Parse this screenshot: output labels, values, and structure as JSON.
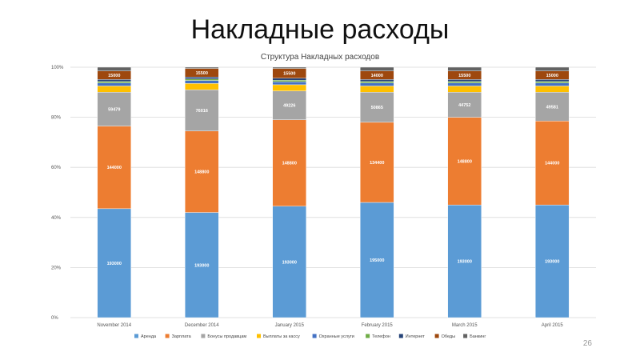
{
  "slide": {
    "title": "Накладные расходы",
    "page_number": "26"
  },
  "chart_data": {
    "type": "bar",
    "stacked": "percent",
    "title": "Структура Накладных расходов",
    "categories": [
      "November 2014",
      "December 2014",
      "January 2015",
      "February 2015",
      "March 2015",
      "April 2015"
    ],
    "y_ticks": [
      "0%",
      "20%",
      "40%",
      "60%",
      "80%",
      "100%"
    ],
    "ylim": [
      0,
      100
    ],
    "grid": true,
    "legend_position": "bottom",
    "series": [
      {
        "name": "Аренда",
        "color": "#5b9bd5",
        "percent": [
          43.5,
          42.0,
          44.5,
          46.0,
          45.0,
          45.0
        ],
        "labels": [
          "193000",
          "193000",
          "193000",
          "195000",
          "193000",
          "193000"
        ]
      },
      {
        "name": "Зарплата",
        "color": "#ed7d31",
        "percent": [
          33.0,
          32.5,
          34.5,
          32.0,
          35.0,
          33.5
        ],
        "labels": [
          "144000",
          "148800",
          "148800",
          "134400",
          "148800",
          "144000"
        ]
      },
      {
        "name": "Бонусы продавцам",
        "color": "#a5a5a5",
        "percent": [
          13.5,
          16.5,
          11.5,
          12.0,
          10.0,
          11.5
        ],
        "labels": [
          "59479",
          "76016",
          "49226",
          "50865",
          "44752",
          "49581"
        ]
      },
      {
        "name": "Выплаты за кассу",
        "color": "#ffc000",
        "percent": [
          2.5,
          2.5,
          2.5,
          2.5,
          2.5,
          2.5
        ],
        "labels": [
          "",
          "",
          "",
          "",
          "",
          ""
        ]
      },
      {
        "name": "Охранные услуги",
        "color": "#4472c4",
        "percent": [
          1.2,
          1.2,
          1.2,
          1.2,
          1.2,
          1.2
        ],
        "labels": [
          "",
          "",
          "",
          "",
          "",
          ""
        ]
      },
      {
        "name": "Телефон",
        "color": "#70ad47",
        "percent": [
          0.6,
          0.6,
          0.6,
          0.6,
          0.6,
          0.6
        ],
        "labels": [
          "",
          "",
          "",
          "",
          "",
          ""
        ]
      },
      {
        "name": "Интернет",
        "color": "#264478",
        "percent": [
          0.8,
          0.8,
          0.8,
          0.8,
          0.8,
          0.8
        ],
        "labels": [
          "",
          "",
          "",
          "",
          "",
          ""
        ]
      },
      {
        "name": "Обеды",
        "color": "#9e480e",
        "percent": [
          3.4,
          3.4,
          3.9,
          3.4,
          3.4,
          3.4
        ],
        "labels": [
          "15000",
          "15500",
          "15500",
          "14000",
          "15500",
          "15000"
        ]
      },
      {
        "name": "Банкинг",
        "color": "#636363",
        "percent": [
          1.5,
          0.5,
          0.5,
          1.5,
          1.5,
          1.5
        ],
        "labels": [
          "",
          "",
          "",
          "",
          "",
          ""
        ]
      }
    ]
  }
}
